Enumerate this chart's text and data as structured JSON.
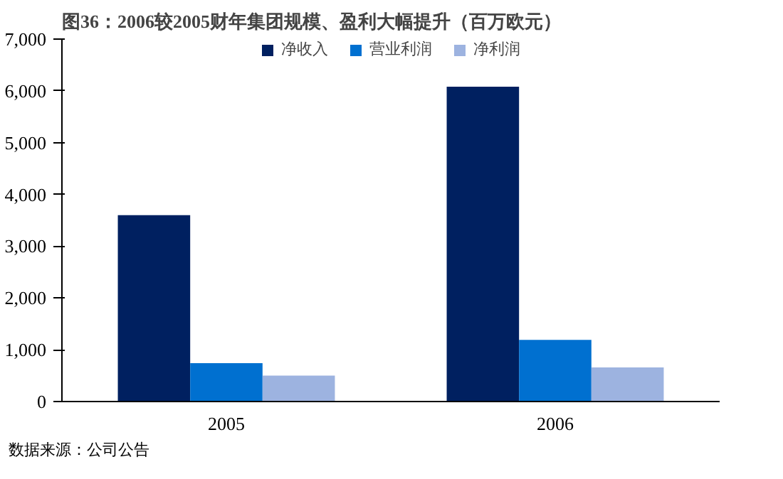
{
  "chart_data": {
    "type": "bar",
    "title": "图36：2006较2005财年集团规模、盈利大幅提升（百万欧元）",
    "categories": [
      "2005",
      "2006"
    ],
    "series": [
      {
        "name": "净收入",
        "color": "#002060",
        "values": [
          3600,
          6080
        ]
      },
      {
        "name": "营业利润",
        "color": "#0070d0",
        "values": [
          740,
          1190
        ]
      },
      {
        "name": "净利润",
        "color": "#9db3e0",
        "values": [
          500,
          660
        ]
      }
    ],
    "ylim": [
      0,
      7000
    ],
    "yticks": [
      {
        "value": 0,
        "label": "0"
      },
      {
        "value": 1000,
        "label": "1,000"
      },
      {
        "value": 2000,
        "label": "2,000"
      },
      {
        "value": 3000,
        "label": "3,000"
      },
      {
        "value": 4000,
        "label": "4,000"
      },
      {
        "value": 5000,
        "label": "5,000"
      },
      {
        "value": 6000,
        "label": "6,000"
      },
      {
        "value": 7000,
        "label": "7,000"
      }
    ],
    "legend": "top",
    "grid": false,
    "annotations": [
      "数据来源：公司公告"
    ]
  }
}
